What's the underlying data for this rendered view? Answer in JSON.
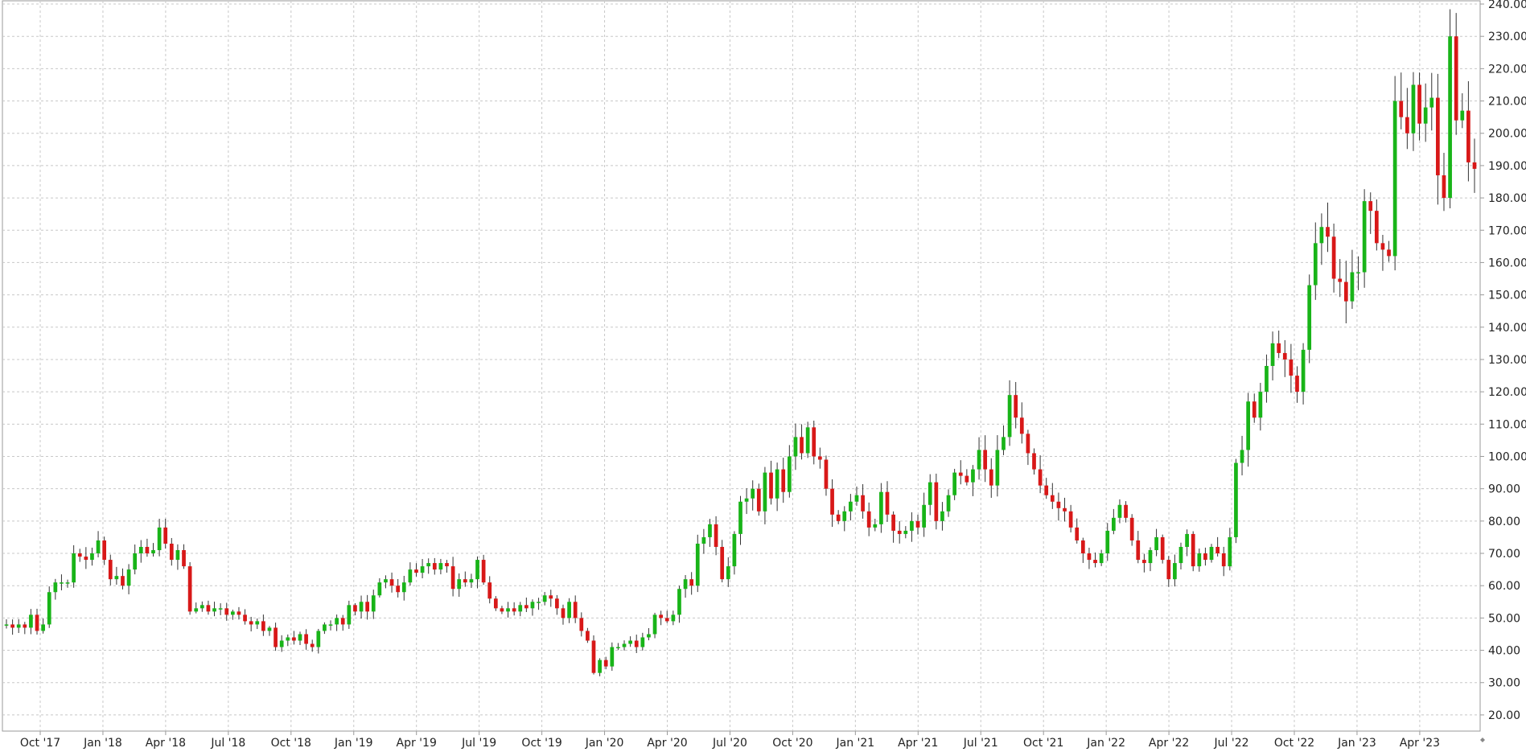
{
  "chart_data": {
    "type": "candlestick",
    "title": "",
    "xlabel": "",
    "ylabel": "",
    "ylim": [
      15,
      241
    ],
    "y_ticks": [
      "20.00",
      "30.00",
      "40.00",
      "50.00",
      "60.00",
      "70.00",
      "80.00",
      "90.00",
      "100.00",
      "110.00",
      "120.00",
      "130.00",
      "140.00",
      "150.00",
      "160.00",
      "170.00",
      "180.00",
      "190.00",
      "200.00",
      "210.00",
      "220.00",
      "230.00",
      "240.00"
    ],
    "x_ticks": [
      "Oct '17",
      "Jan '18",
      "Apr '18",
      "Jul '18",
      "Oct '18",
      "Jan '19",
      "Apr '19",
      "Jul '19",
      "Oct '19",
      "Jan '20",
      "Apr '20",
      "Jul '20",
      "Oct '20",
      "Jan '21",
      "Apr '21",
      "Jul '21",
      "Oct '21",
      "Jan '22",
      "Apr '22",
      "Jul '22",
      "Oct '22",
      "Jan '23",
      "Apr '23"
    ],
    "grid": true,
    "up_color": "#18b418",
    "down_color": "#d81818",
    "wick_color": "#333333",
    "close_path": [
      48,
      47,
      48,
      47,
      51,
      46,
      48,
      58,
      61,
      61,
      61,
      70,
      69,
      68,
      70,
      74,
      68,
      62,
      63,
      60,
      65,
      70,
      72,
      70,
      71,
      78,
      73,
      68,
      71,
      66,
      52,
      53,
      54,
      52,
      53,
      53,
      51,
      52,
      51,
      49,
      48,
      49,
      46,
      47,
      41,
      43,
      44,
      43,
      45,
      42,
      41,
      46,
      48,
      48,
      50,
      48,
      54,
      52,
      55,
      52,
      57,
      61,
      62,
      60,
      58,
      61,
      65,
      64,
      66,
      67,
      65,
      67,
      66,
      59,
      62,
      61,
      62,
      68,
      61,
      56,
      53,
      52,
      53,
      52,
      54,
      53,
      55,
      55,
      57,
      56,
      53,
      50,
      55,
      50,
      46,
      43,
      33,
      37,
      35,
      41,
      41,
      42,
      43,
      41,
      44,
      45,
      51,
      50,
      49,
      51,
      59,
      62,
      60,
      73,
      75,
      79,
      72,
      62,
      66,
      76,
      86,
      87,
      90,
      83,
      95,
      87,
      96,
      89,
      100,
      106,
      101,
      109,
      100,
      99,
      90,
      82,
      80,
      83,
      86,
      88,
      83,
      78,
      79,
      89,
      82,
      77,
      76,
      77,
      80,
      78,
      85,
      92,
      80,
      83,
      88,
      95,
      94,
      92,
      96,
      102,
      96,
      91,
      102,
      106,
      119,
      112,
      107,
      101,
      96,
      91,
      88,
      86,
      84,
      83,
      78,
      74,
      70,
      68,
      67,
      70,
      77,
      81,
      85,
      81,
      74,
      68,
      67,
      71,
      75,
      68,
      62,
      67,
      72,
      76,
      66,
      70,
      68,
      72,
      70,
      66,
      75,
      98,
      102,
      117,
      112,
      120,
      128,
      135,
      132,
      130,
      125,
      120,
      133,
      153,
      166,
      171,
      168,
      155,
      154,
      148,
      157,
      157,
      179,
      176,
      166,
      164,
      162,
      210,
      205,
      200,
      215,
      203,
      208,
      211,
      187,
      180,
      230,
      204,
      207,
      191,
      189
    ]
  }
}
